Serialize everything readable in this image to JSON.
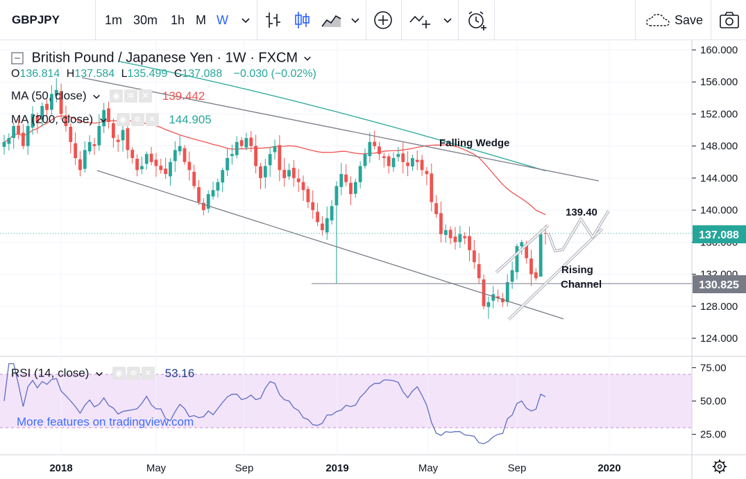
{
  "toolbar": {
    "symbol": "GBPJPY",
    "intervals": [
      "1m",
      "30m",
      "1h",
      "M",
      "W"
    ],
    "active_interval": "W",
    "save_label": "Save"
  },
  "legend": {
    "title": "British Pound / Japanese Yen · 1W · FXCM",
    "ohlc": {
      "o_label": "O",
      "o": "136.814",
      "h_label": "H",
      "h": "137.584",
      "l_label": "L",
      "l": "135.499",
      "c_label": "C",
      "c": "137.088",
      "change": "−0.030 (−0.02%)"
    },
    "ma50": {
      "label": "MA (50, close)",
      "value": "139.442",
      "color": "#ef5350"
    },
    "ma200": {
      "label": "MA (200, close)",
      "value": "144.905",
      "color": "#26a69a"
    }
  },
  "rsi": {
    "label": "RSI (14, close)",
    "value": "53.16",
    "color": "#7e57c2"
  },
  "watermark": "More features on tradingview.com",
  "annotations": {
    "falling_wedge": "Falling Wedge",
    "target": "139.40",
    "rising_channel_1": "Rising",
    "rising_channel_2": "Channel"
  },
  "price_labels": {
    "last": "137.088",
    "support": "130.825"
  },
  "colors": {
    "up": "#26a69a",
    "down": "#ef5350",
    "rsi_band": "#f3e4fa",
    "accent": "#2962ff"
  },
  "chart_data": [
    {
      "type": "candlestick",
      "title": "British Pound / Japanese Yen · 1W · FXCM",
      "x_ticks": [
        "2018",
        "May",
        "Sep",
        "2019",
        "May",
        "Sep",
        "2020"
      ],
      "y_ticks": [
        124,
        128,
        132,
        136,
        140,
        144,
        148,
        152,
        156,
        160
      ],
      "y_tick_labels": [
        "124.000",
        "128.000",
        "132.000",
        "136.000",
        "140.000",
        "144.000",
        "148.000",
        "152.000",
        "156.000",
        "160.000"
      ],
      "ylim": [
        121.5,
        161.5
      ],
      "close_path": [
        148.5,
        149.0,
        150.5,
        149.5,
        148.0,
        150.5,
        152.0,
        151.0,
        153.0,
        152.5,
        154.5,
        155.0,
        152.0,
        150.5,
        148.5,
        146.5,
        145.0,
        147.5,
        148.5,
        148.0,
        150.5,
        152.5,
        151.0,
        149.0,
        148.5,
        150.0,
        147.5,
        146.5,
        145.0,
        145.5,
        147.0,
        146.0,
        145.5,
        145.0,
        144.5,
        146.0,
        147.5,
        148.0,
        146.0,
        145.0,
        143.0,
        141.0,
        140.0,
        142.0,
        142.5,
        143.5,
        145.0,
        146.5,
        147.0,
        148.5,
        148.0,
        149.0,
        148.0,
        145.5,
        144.0,
        145.5,
        147.0,
        148.0,
        145.0,
        144.0,
        145.0,
        144.0,
        143.5,
        142.5,
        141.0,
        140.0,
        138.5,
        137.5,
        139.0,
        140.5,
        143.0,
        144.5,
        143.5,
        142.0,
        143.5,
        145.5,
        147.0,
        148.5,
        148.0,
        147.0,
        146.5,
        145.5,
        146.5,
        147.0,
        146.0,
        145.5,
        146.5,
        146.0,
        145.0,
        144.5,
        141.0,
        139.5,
        137.0,
        137.5,
        136.5,
        136.0,
        137.0,
        136.5,
        135.0,
        133.5,
        131.5,
        128.0,
        128.5,
        129.5,
        129.0,
        128.5,
        131.0,
        132.5,
        135.5,
        136.0,
        134.0,
        132.0,
        131.5,
        137.0,
        137.088
      ],
      "ma50": {
        "name": "MA (50, close)",
        "last": 139.442
      },
      "ma200": {
        "name": "MA (200, close)",
        "last": 144.905
      },
      "support_level": 130.825,
      "last_price": 137.088,
      "spike_low": 130.8,
      "falling_wedge": {
        "upper": [
          [
            0.11,
            156.5
          ],
          [
            0.8,
            144.2
          ]
        ],
        "lower": [
          [
            0.13,
            145.0
          ],
          [
            0.75,
            126.5
          ]
        ]
      },
      "projected_target": 139.4
    },
    {
      "type": "line",
      "title": "RSI (14, close)",
      "y_ticks": [
        25,
        50,
        75
      ],
      "y_tick_labels": [
        "25.00",
        "50.00",
        "75.00"
      ],
      "ylim": [
        16,
        80
      ],
      "band": [
        30,
        70
      ],
      "last": 53.16
    }
  ]
}
